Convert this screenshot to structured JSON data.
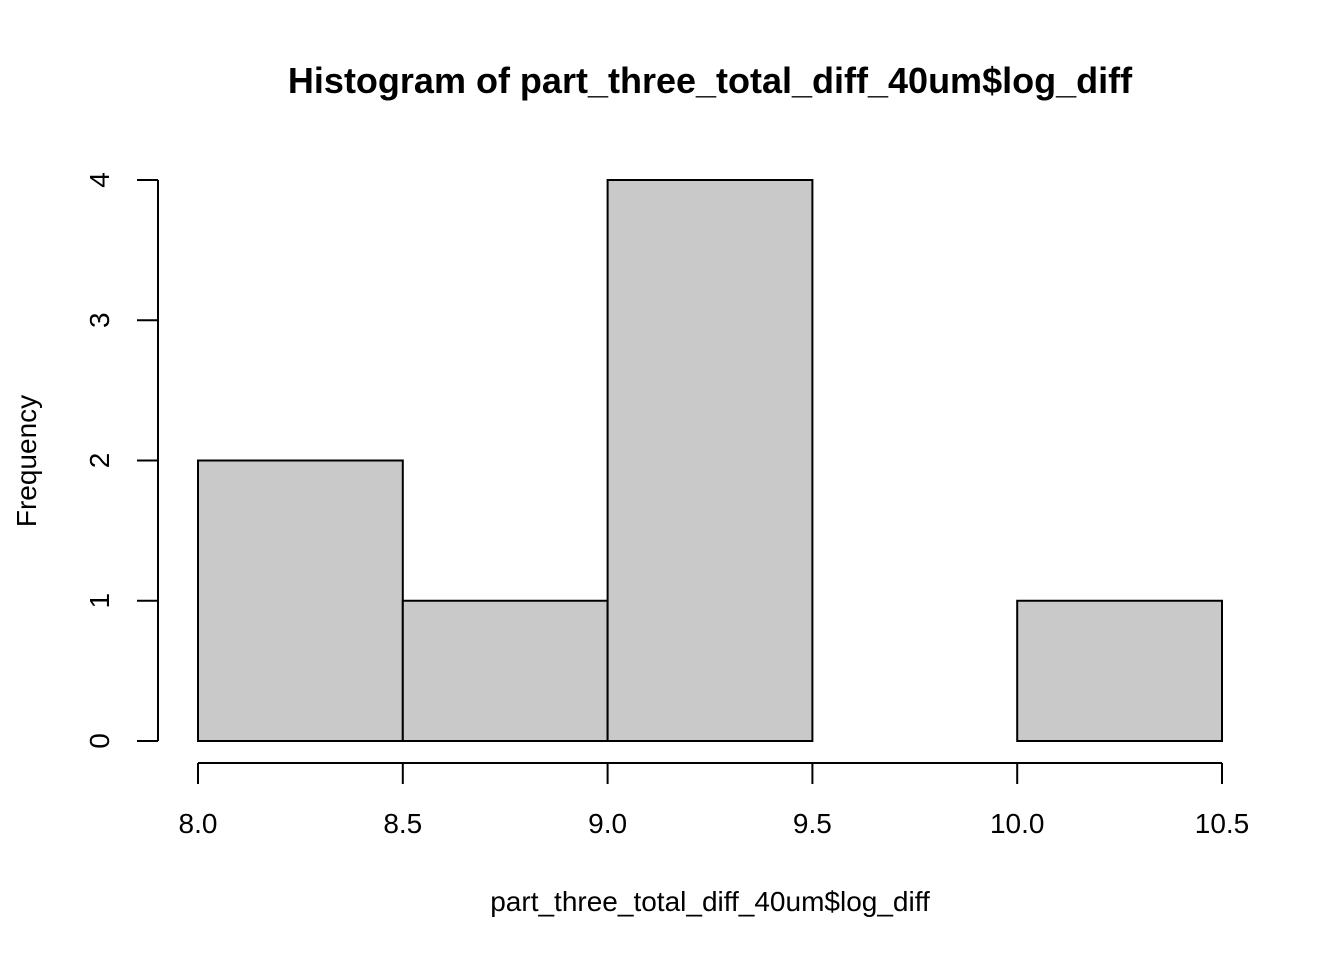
{
  "chart_data": {
    "type": "bar",
    "subtype": "histogram",
    "title": "Histogram of part_three_total_diff_40um$log_diff",
    "xlabel": "part_three_total_diff_40um$log_diff",
    "ylabel": "Frequency",
    "bins": [
      {
        "start": 8.0,
        "end": 8.5,
        "count": 2
      },
      {
        "start": 8.5,
        "end": 9.0,
        "count": 1
      },
      {
        "start": 9.0,
        "end": 9.5,
        "count": 4
      },
      {
        "start": 9.5,
        "end": 10.0,
        "count": 0
      },
      {
        "start": 10.0,
        "end": 10.5,
        "count": 1
      }
    ],
    "xticks": [
      "8.0",
      "8.5",
      "9.0",
      "9.5",
      "10.0",
      "10.5"
    ],
    "yticks": [
      "0",
      "1",
      "2",
      "3",
      "4"
    ],
    "xlim": [
      8.0,
      10.5
    ],
    "ylim": [
      0,
      4
    ],
    "grid": false,
    "legend": "none",
    "bar_fill": "#c9c9c9",
    "bar_stroke": "#000000"
  }
}
